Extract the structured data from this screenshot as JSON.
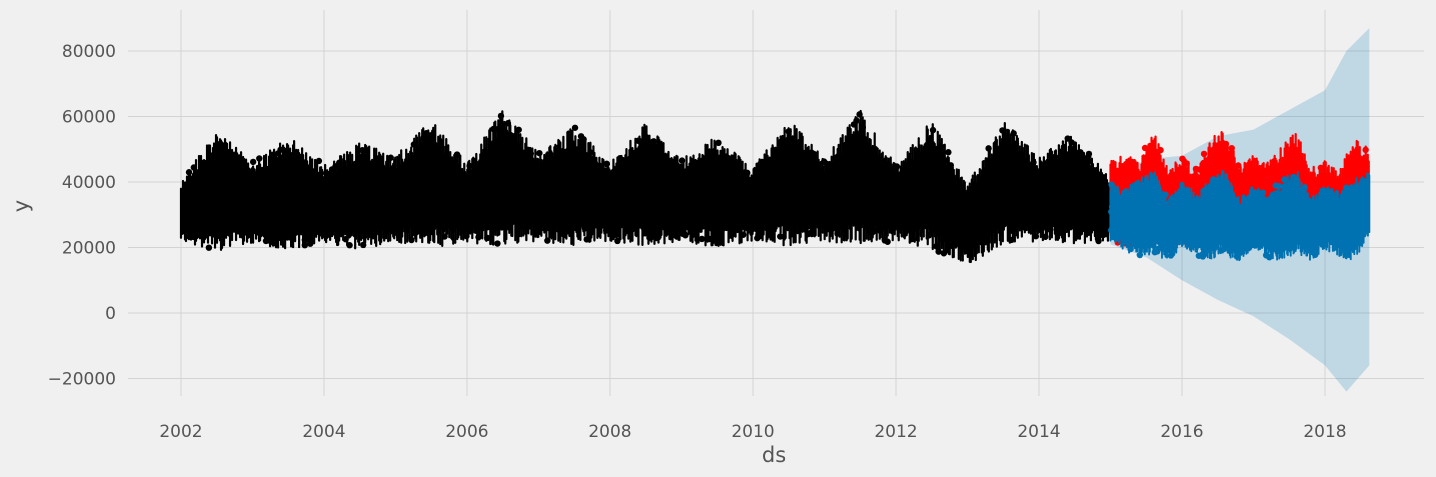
{
  "chart_data": {
    "type": "scatter",
    "title": "",
    "xlabel": "ds",
    "ylabel": "y",
    "xlim": [
      2001.8,
      2019.4
    ],
    "ylim": [
      -25000,
      92000
    ],
    "grid": true,
    "x_ticks": [
      {
        "value": 2002,
        "label": "2002"
      },
      {
        "value": 2004,
        "label": "2004"
      },
      {
        "value": 2006,
        "label": "2006"
      },
      {
        "value": 2008,
        "label": "2008"
      },
      {
        "value": 2010,
        "label": "2010"
      },
      {
        "value": 2012,
        "label": "2012"
      },
      {
        "value": 2014,
        "label": "2014"
      },
      {
        "value": 2016,
        "label": "2016"
      },
      {
        "value": 2018,
        "label": "2018"
      }
    ],
    "y_ticks": [
      {
        "value": -20000,
        "label": "−20000"
      },
      {
        "value": 0,
        "label": "0"
      },
      {
        "value": 20000,
        "label": "20000"
      },
      {
        "value": 40000,
        "label": "40000"
      },
      {
        "value": 60000,
        "label": "60000"
      },
      {
        "value": 80000,
        "label": "80000"
      }
    ],
    "series": [
      {
        "color": "#000000",
        "kind": "observed_band",
        "x": [
          2002.0,
          2002.5,
          2003.0,
          2003.5,
          2004.0,
          2004.5,
          2005.0,
          2005.5,
          2006.0,
          2006.5,
          2007.0,
          2007.5,
          2008.0,
          2008.5,
          2009.0,
          2009.5,
          2010.0,
          2010.5,
          2011.0,
          2011.5,
          2012.0,
          2012.5,
          2013.0,
          2013.5,
          2014.0,
          2014.5,
          2014.99
        ],
        "low": [
          22000,
          19000,
          21000,
          19500,
          21000,
          19500,
          21500,
          20000,
          21500,
          20500,
          22000,
          20500,
          22000,
          20500,
          22000,
          20000,
          22000,
          20500,
          22000,
          20500,
          22000,
          19500,
          14500,
          21000,
          22000,
          21000,
          22000
        ],
        "high": [
          40000,
          56000,
          46000,
          54000,
          45000,
          52000,
          48000,
          59000,
          46000,
          62000,
          49000,
          57000,
          46000,
          58000,
          47000,
          54000,
          44000,
          60000,
          47000,
          62000,
          45000,
          59000,
          39000,
          59000,
          48000,
          55000,
          41000
        ]
      },
      {
        "color": "#ff0000",
        "kind": "observed_band",
        "x": [
          2015.0,
          2015.2,
          2015.4,
          2015.6,
          2015.8,
          2016.0,
          2016.2,
          2016.4,
          2016.6,
          2016.8,
          2017.0,
          2017.2,
          2017.4,
          2017.6,
          2017.8,
          2018.0,
          2018.2,
          2018.4,
          2018.62
        ],
        "low": [
          23000,
          20000,
          22000,
          21000,
          23000,
          21000,
          20000,
          22000,
          21000,
          22000,
          21000,
          20000,
          22000,
          21000,
          23000,
          20500,
          21000,
          23000,
          25000
        ],
        "high": [
          47000,
          49000,
          46000,
          56000,
          44000,
          48000,
          44000,
          53000,
          57000,
          46000,
          48000,
          46000,
          51000,
          56000,
          44000,
          47000,
          43000,
          54000,
          50000
        ]
      },
      {
        "color": "#0072b2",
        "kind": "forecast_band",
        "x": [
          2015.0,
          2015.2,
          2015.4,
          2015.6,
          2015.8,
          2016.0,
          2016.2,
          2016.4,
          2016.6,
          2016.8,
          2017.0,
          2017.2,
          2017.4,
          2017.6,
          2017.8,
          2018.0,
          2018.2,
          2018.4,
          2018.62
        ],
        "low": [
          22000,
          19000,
          17000,
          18000,
          16000,
          20000,
          17500,
          16000,
          17500,
          16000,
          20000,
          17000,
          15500,
          18000,
          16000,
          19500,
          17000,
          15500,
          24000
        ],
        "high": [
          40000,
          38000,
          41000,
          44000,
          35000,
          40000,
          37000,
          41000,
          44000,
          35000,
          39000,
          37000,
          41000,
          44000,
          35000,
          39000,
          37000,
          41000,
          43000
        ]
      },
      {
        "color": "#0072b2",
        "kind": "uncertainty_band",
        "x": [
          2015.0,
          2015.5,
          2016.0,
          2016.5,
          2017.0,
          2017.5,
          2018.0,
          2018.3,
          2018.62
        ],
        "low": [
          21000,
          17000,
          10000,
          4000,
          -1000,
          -8000,
          -16000,
          -24000,
          -16000
        ],
        "high": [
          41000,
          47000,
          48000,
          54000,
          56000,
          62000,
          68000,
          80000,
          87000
        ]
      }
    ]
  }
}
